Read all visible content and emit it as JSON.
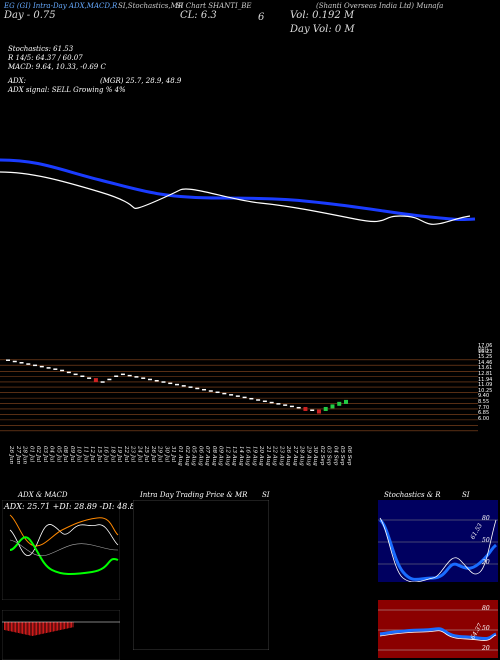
{
  "header": {
    "line1_left": "EG (GI) Intra-Day ADX,MACD,R",
    "line1_mid": "SI,Stochastics,MR",
    "line1_right": "SI Chart SHANTI_BE",
    "line1_far": "(Shanti Overseas India Ltd) Munafa",
    "line2_left": "Day - 0.75",
    "cl": "CL: 6.3",
    "cl_suffix": "6",
    "vol": "Vol: 0.192 M",
    "dayvol": "Day Vol: 0 M"
  },
  "indicators": {
    "stoch": "Stochastics: 61.53",
    "rsi": "R 14/5: 64.37 / 60.07",
    "macd": "MACD: 9.64, 10.33, -0.69 C",
    "adx": "ADX:",
    "mrsi": "(MGR) 25.7, 28.9, 48.9",
    "adx_signal": "ADX signal: SELL Growing % 4%"
  },
  "price_levels": [
    "17.06",
    "16.23",
    "15.25",
    "14.46",
    "13.61",
    "12.81",
    "11.94",
    "11.09",
    "10.25",
    "9.40",
    "8.55",
    "7.70",
    "6.85",
    "6.00"
  ],
  "panels": {
    "adx_title": "ADX & MACD",
    "adx_values": "ADX: 25.71 +DI: 28.89 -DI: 48.89",
    "intraday_title": "Intra Day Trading Price & MR",
    "intraday_suffix": "SI",
    "stoch_title": "Stochastics & R",
    "stoch_suffix": "SI",
    "stoch_levels": [
      "80",
      "50",
      "20"
    ],
    "stoch_value": "61.53",
    "rsi_levels": [
      "80",
      "50",
      "20"
    ],
    "rsi_value": "64.37"
  },
  "chart_data": {
    "type": "line",
    "dates": [
      "26 Jun",
      "27 Jun",
      "28 Jun",
      "01 Jul",
      "02 Jul",
      "03 Jul",
      "04 Jul",
      "05 Jul",
      "08 Jul",
      "09 Jul",
      "10 Jul",
      "11 Jul",
      "12 Jul",
      "15 Jul",
      "16 Jul",
      "18 Jul",
      "19 Jul",
      "22 Jul",
      "23 Jul",
      "24 Jul",
      "25 Jul",
      "26 Jul",
      "29 Jul",
      "30 Jul",
      "31 Jul",
      "01 Aug",
      "02 Aug",
      "05 Aug",
      "06 Aug",
      "07 Aug",
      "08 Aug",
      "09 Aug",
      "12 Aug",
      "13 Aug",
      "14 Aug",
      "16 Aug",
      "19 Aug",
      "20 Aug",
      "21 Aug",
      "22 Aug",
      "23 Aug",
      "26 Aug",
      "27 Aug",
      "28 Aug",
      "29 Aug",
      "30 Aug",
      "02 Sep",
      "03 Sep",
      "04 Sep",
      "05 Sep",
      "06 Sep"
    ],
    "ylim": [
      5.5,
      17.5
    ],
    "close": [
      17.0,
      16.8,
      16.6,
      16.4,
      16.2,
      16.0,
      15.8,
      15.6,
      15.4,
      15.1,
      14.8,
      14.5,
      14.2,
      13.9,
      13.6,
      14.0,
      14.5,
      14.8,
      14.6,
      14.4,
      14.2,
      14.0,
      13.8,
      13.6,
      13.4,
      13.2,
      13.0,
      12.8,
      12.6,
      12.4,
      12.2,
      12.0,
      11.8,
      11.6,
      11.4,
      11.2,
      11.0,
      10.8,
      10.6,
      10.4,
      10.2,
      10.0,
      9.8,
      9.6,
      9.4,
      9.2,
      9.0,
      9.4,
      9.8,
      10.2,
      10.5
    ],
    "series": [
      {
        "name": "",
        "values": [
          17.0,
          16.8,
          16.6,
          16.4,
          16.2,
          16.0,
          15.8,
          15.6,
          15.4,
          15.1,
          14.8,
          14.5,
          14.2,
          13.9,
          13.6,
          14.0,
          14.5,
          14.8,
          14.6,
          14.4,
          14.2,
          14.0,
          13.8,
          13.6,
          13.4,
          13.2,
          13.0,
          12.8,
          12.6,
          12.4,
          12.2,
          12.0,
          11.8,
          11.6,
          11.4,
          11.2,
          11.0,
          10.8,
          10.6,
          10.4,
          10.2,
          10.0,
          9.8,
          9.6,
          9.4,
          9.2,
          9.0,
          9.4,
          9.8,
          10.2,
          10.5
        ]
      }
    ],
    "candle_colors": {
      "up": "#22cc44",
      "down": "#cc2222",
      "neutral": "#ffffff"
    },
    "ma_colors": {
      "blue": "#1a3cff",
      "white": "#ffffff"
    }
  }
}
